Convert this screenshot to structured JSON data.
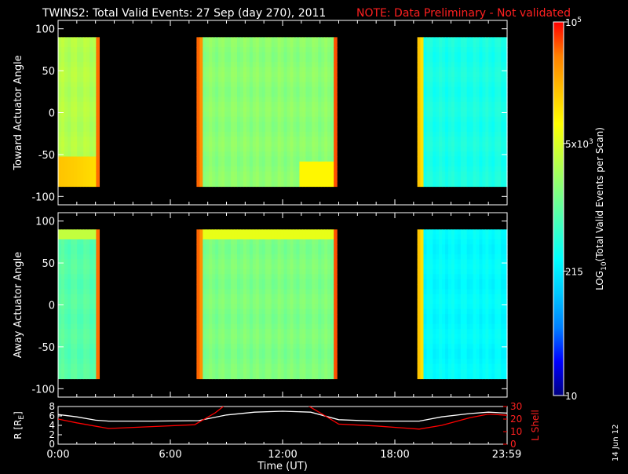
{
  "header": {
    "title": "TWINS2: Total Valid Events: 27 Sep (day 270), 2011",
    "note": "NOTE: Data Preliminary - Not validated"
  },
  "side_date": "14 Jun 12",
  "colorbar": {
    "label": "LOG",
    "label_sub": "10",
    "label_rest": "(Total Valid Events per Scan)",
    "ticks": [
      {
        "value": 100000,
        "mant": "10",
        "exp": "5"
      },
      {
        "value": 5000,
        "mant": "5x10",
        "exp": "3"
      },
      {
        "value": 215,
        "mant": "215",
        "exp": ""
      },
      {
        "value": 10,
        "mant": "10",
        "exp": ""
      }
    ],
    "range": [
      10,
      100000
    ],
    "colors": [
      "#000080",
      "#0000ff",
      "#0080ff",
      "#00c8ff",
      "#00ffff",
      "#40ffc0",
      "#80ff80",
      "#c0ff40",
      "#ffff00",
      "#ffc000",
      "#ff8000",
      "#ff0000"
    ]
  },
  "chart_data": [
    {
      "type": "heatmap",
      "name": "toward",
      "ylabel": "Toward Actuator Angle",
      "ylim": [
        -110,
        110
      ],
      "yticks": [
        "100",
        "50",
        "0",
        "-50",
        "-100"
      ],
      "ytick_values": [
        100,
        50,
        0,
        -50,
        -100
      ],
      "xlim_hours": [
        0,
        24
      ],
      "blocks": [
        {
          "t0": 0,
          "t1": 2.2,
          "base": 3000,
          "edge_end": 50000,
          "low_angle_high": true
        },
        {
          "t0": 7.4,
          "t1": 14.9,
          "base": 1800,
          "edge_start": 60000,
          "edge_end": 60000,
          "low_angle_high_from": 12.9
        },
        {
          "t0": 19.2,
          "t1": 24,
          "base": 400,
          "edge_start": 20000
        }
      ],
      "yrange": [
        -88,
        90
      ]
    },
    {
      "type": "heatmap",
      "name": "away",
      "ylabel": "Away Actuator Angle",
      "ylim": [
        -110,
        110
      ],
      "yticks": [
        "100",
        "50",
        "0",
        "-50",
        "-100"
      ],
      "ytick_values": [
        100,
        50,
        0,
        -50,
        -100
      ],
      "xlim_hours": [
        0,
        24
      ],
      "blocks": [
        {
          "t0": 0,
          "t1": 2.2,
          "base": 900,
          "edge_end": 50000,
          "high_angle_high": true
        },
        {
          "t0": 7.4,
          "t1": 14.9,
          "base": 1500,
          "edge_start": 60000,
          "edge_end": 60000,
          "high_angle_high": true
        },
        {
          "t0": 19.2,
          "t1": 24,
          "base": 280,
          "edge_start": 20000
        }
      ],
      "yrange": [
        -88,
        90
      ]
    },
    {
      "type": "line",
      "name": "orbit",
      "ylabel_left": "R [R",
      "ylabel_left_sub": "E",
      "ylabel_left_end": "]",
      "ylabel_right": "L Shell",
      "ylim_left": [
        0,
        8
      ],
      "yticks_left": [
        "8",
        "6",
        "4",
        "2",
        "0"
      ],
      "ytick_values_left": [
        8,
        6,
        4,
        2,
        0
      ],
      "ylim_right": [
        0,
        30
      ],
      "yticks_right": [
        "30",
        "20",
        "10",
        "0"
      ],
      "ytick_values_right": [
        30,
        20,
        10,
        0
      ],
      "xlabel": "Time (UT)",
      "xticks": [
        "0:00",
        "6:00",
        "12:00",
        "18:00",
        "23:59"
      ],
      "xtick_values": [
        0,
        6,
        12,
        18,
        23.98
      ],
      "series": [
        {
          "color": "#ffffff",
          "axis": "left",
          "x": [
            0,
            1,
            2,
            2.7,
            5,
            7.5,
            9,
            10.5,
            12,
            13.5,
            15,
            17,
            19.3,
            20.5,
            22,
            23,
            24
          ],
          "y": [
            6.3,
            5.8,
            5.1,
            4.9,
            4.9,
            5.0,
            6.2,
            6.8,
            7.0,
            6.8,
            5.2,
            4.9,
            4.9,
            5.8,
            6.5,
            6.8,
            6.6
          ]
        },
        {
          "color": "#ff0000",
          "axis": "right",
          "x": [
            0,
            1,
            2.7,
            5,
            7.3,
            8.4,
            9,
            13.2,
            14,
            15,
            17,
            19.3,
            20.5,
            22,
            23,
            24
          ],
          "y": [
            20,
            17,
            12.5,
            14,
            15.5,
            25,
            32,
            32,
            25,
            16,
            14.5,
            12,
            15,
            21,
            24,
            23
          ]
        }
      ]
    }
  ]
}
